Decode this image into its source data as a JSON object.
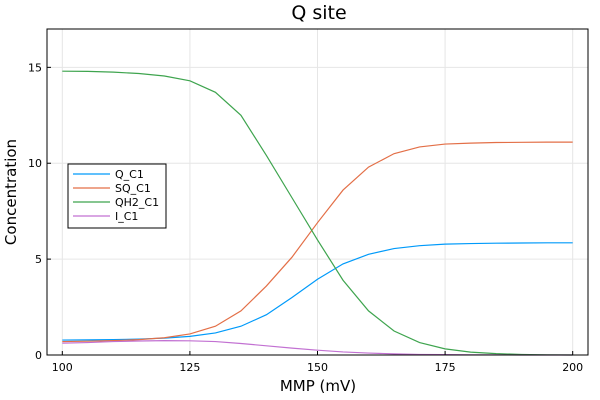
{
  "chart_data": {
    "type": "line",
    "title": "Q site",
    "xlabel": "MMP (mV)",
    "ylabel": "Concentration",
    "xlim": [
      97,
      203
    ],
    "ylim": [
      0,
      17
    ],
    "xticks": [
      100,
      125,
      150,
      175,
      200
    ],
    "yticks": [
      0,
      5,
      10,
      15
    ],
    "grid": true,
    "legend_position": "middle-left",
    "x": [
      100,
      105,
      110,
      115,
      120,
      125,
      130,
      135,
      140,
      145,
      150,
      155,
      160,
      165,
      170,
      175,
      180,
      185,
      190,
      195,
      200
    ],
    "series": [
      {
        "name": "Q_C1",
        "color": "#009AFA",
        "values": [
          0.78,
          0.79,
          0.8,
          0.83,
          0.88,
          0.97,
          1.15,
          1.5,
          2.1,
          3.0,
          3.95,
          4.75,
          5.25,
          5.55,
          5.7,
          5.78,
          5.81,
          5.83,
          5.84,
          5.85,
          5.85
        ]
      },
      {
        "name": "SQ_C1",
        "color": "#E36F47",
        "values": [
          0.7,
          0.72,
          0.75,
          0.8,
          0.9,
          1.1,
          1.5,
          2.3,
          3.6,
          5.1,
          6.9,
          8.6,
          9.8,
          10.5,
          10.85,
          11.0,
          11.05,
          11.08,
          11.09,
          11.1,
          11.1
        ]
      },
      {
        "name": "QH2_C1",
        "color": "#3EA44E",
        "values": [
          14.8,
          14.79,
          14.75,
          14.68,
          14.55,
          14.3,
          13.7,
          12.5,
          10.4,
          8.2,
          6.0,
          3.9,
          2.3,
          1.25,
          0.65,
          0.32,
          0.15,
          0.07,
          0.03,
          0.01,
          0.0
        ]
      },
      {
        "name": "I_C1",
        "color": "#C271D2",
        "values": [
          0.62,
          0.65,
          0.7,
          0.73,
          0.75,
          0.74,
          0.7,
          0.6,
          0.48,
          0.36,
          0.25,
          0.16,
          0.1,
          0.06,
          0.03,
          0.02,
          0.01,
          0.005,
          0.0,
          0.0,
          0.0
        ]
      }
    ]
  }
}
